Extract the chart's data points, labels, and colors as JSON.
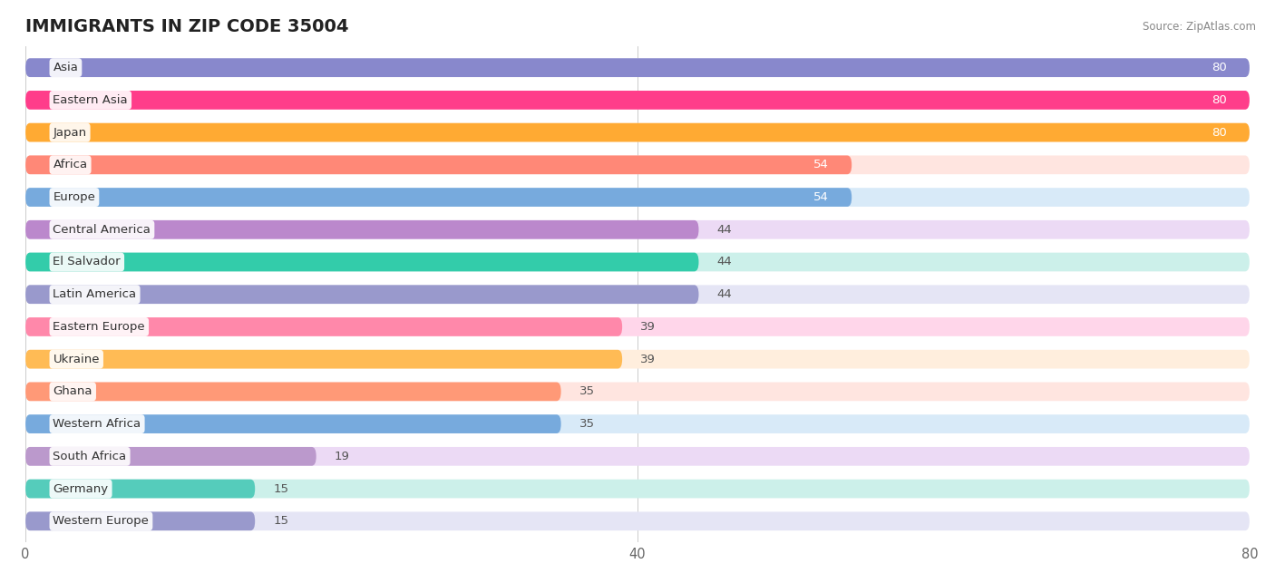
{
  "title": "IMMIGRANTS IN ZIP CODE 35004",
  "source": "Source: ZipAtlas.com",
  "categories": [
    "Asia",
    "Eastern Asia",
    "Japan",
    "Africa",
    "Europe",
    "Central America",
    "El Salvador",
    "Latin America",
    "Eastern Europe",
    "Ukraine",
    "Ghana",
    "Western Africa",
    "South Africa",
    "Germany",
    "Western Europe"
  ],
  "values": [
    80,
    80,
    80,
    54,
    54,
    44,
    44,
    44,
    39,
    39,
    35,
    35,
    19,
    15,
    15
  ],
  "bar_colors": [
    "#8888cc",
    "#ff3d8a",
    "#ffaa33",
    "#ff8877",
    "#77aadd",
    "#bb88cc",
    "#33ccaa",
    "#9999cc",
    "#ff88aa",
    "#ffbb55",
    "#ff9977",
    "#77aadd",
    "#bb99cc",
    "#55ccbb",
    "#9999cc"
  ],
  "bar_bg_colors": [
    "#e5e5f5",
    "#ffd6ea",
    "#ffeedd",
    "#ffe5e0",
    "#d8eaf8",
    "#ecdaf5",
    "#ccf0ea",
    "#e5e5f5",
    "#ffd6ea",
    "#ffeedd",
    "#ffe5e0",
    "#d8eaf8",
    "#ecdaf5",
    "#ccf0ea",
    "#e5e5f5"
  ],
  "xlim": [
    0,
    80
  ],
  "xticks": [
    0,
    40,
    80
  ],
  "background_color": "#ffffff",
  "title_fontsize": 14,
  "label_fontsize": 9.5,
  "value_fontsize": 9.5
}
